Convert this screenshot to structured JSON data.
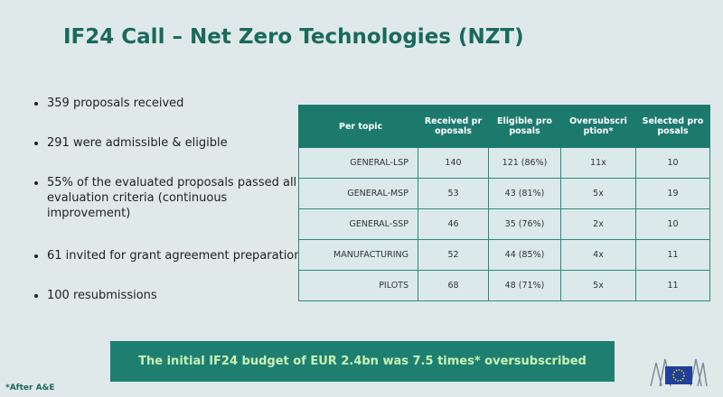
{
  "header": {
    "title": "IF24 Call – Net Zero Technologies (NZT)"
  },
  "bullets": [
    "359 proposals received",
    "291 were admissible & eligible",
    "55% of the evaluated proposals passed all evaluation criteria (continuous improvement)",
    "61 invited for grant agreement preparation",
    "100 resubmissions"
  ],
  "table": {
    "columns": [
      "Per topic",
      "Received proposals",
      "Eligible proposals",
      "Oversubscription*",
      "Selected proposals"
    ],
    "rows": [
      [
        "GENERAL-LSP",
        "140",
        "121 (86%)",
        "11x",
        "10"
      ],
      [
        "GENERAL-MSP",
        "53",
        "43 (81%)",
        "5x",
        "19"
      ],
      [
        "GENERAL-SSP",
        "46",
        "35 (76%)",
        "2x",
        "10"
      ],
      [
        "MANUFACTURING",
        "52",
        "44 (85%)",
        "4x",
        "11"
      ],
      [
        "PILOTS",
        "68",
        "48 (71%)",
        "5x",
        "11"
      ]
    ]
  },
  "banner": "The initial IF24 budget of EUR 2.4bn was 7.5 times* oversubscribed",
  "footnote": "*After A&E"
}
